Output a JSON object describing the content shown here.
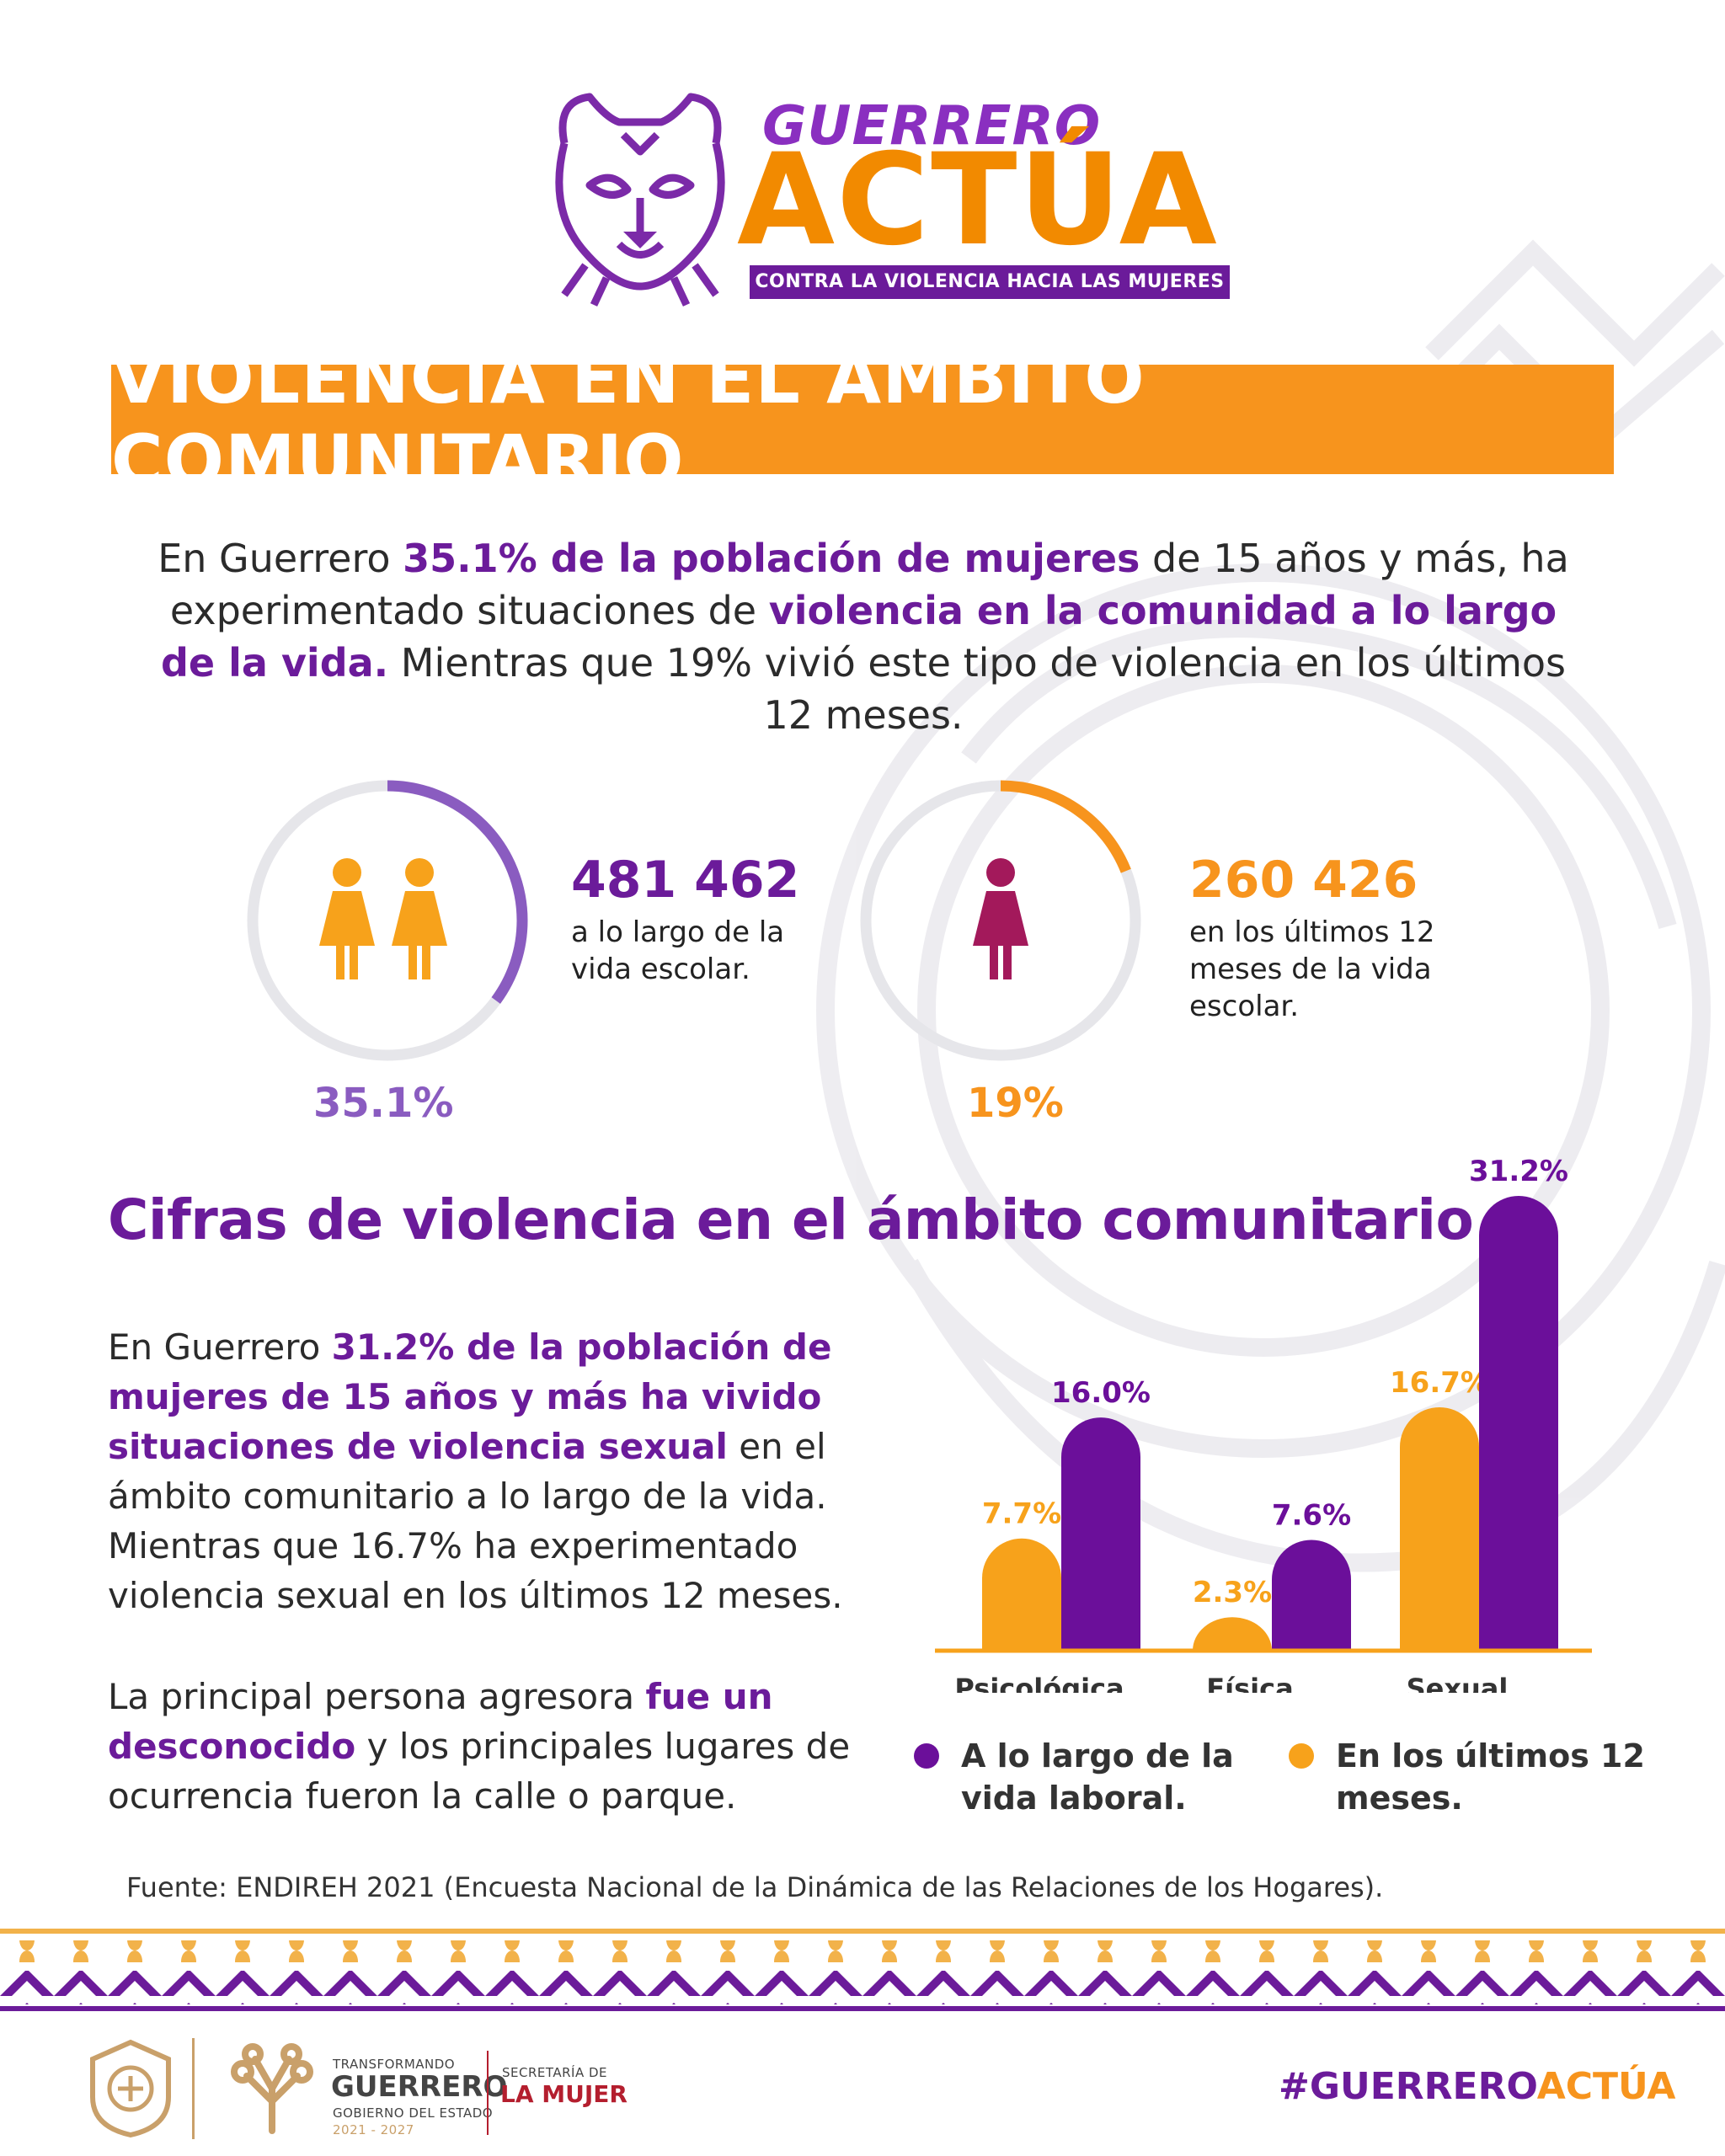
{
  "logo": {
    "line1": "GUERRERO",
    "line2": "ACTÚA",
    "tagline": "CONTRA LA VIOLENCIA HACIA LAS MUJERES",
    "icon": "jaguar-icon"
  },
  "title": "VIOLENCIA EN EL ÁMBITO COMUNITARIO",
  "intro": {
    "t1": "En Guerrero ",
    "h1": "35.1% de la población de mujeres",
    "t2": " de 15 años y más, ha experimentado situaciones de ",
    "h2": "violencia en la comunidad a lo largo de la vida.",
    "t3": " Mientras que 19% vivió este tipo de violencia en los últimos 12 meses."
  },
  "stats": [
    {
      "number": "481 462",
      "desc_line1": "a lo largo de la",
      "desc_line2": "vida escolar.",
      "desc_line3": "",
      "percent_label": "35.1%",
      "percent": 35.1,
      "icon": "two-women-icon",
      "color": "#8a5cc0",
      "icon_color": "#f7a21b"
    },
    {
      "number": "260 426",
      "desc_line1": "en los últimos 12",
      "desc_line2": "meses de la vida",
      "desc_line3": "escolar.",
      "percent_label": "19%",
      "percent": 19,
      "icon": "woman-icon",
      "color": "#f7941d",
      "icon_color": "#a3195b"
    }
  ],
  "section_title": "Cifras de violencia en el ámbito comunitario",
  "para1": {
    "t1": "En Guerrero ",
    "h1": "31.2% de la población de mujeres de 15 años y más ha vivido situaciones de violencia sexual",
    "t2": " en el ámbito comunitario a lo largo de la vida. Mientras que 16.7% ha experimentado violencia sexual en los últimos 12 meses."
  },
  "para2": {
    "t1": "La principal persona agresora ",
    "h1": "fue un desconocido",
    "t2": " y los principales lugares de ocurrencia fueron la calle o parque."
  },
  "chart_data": {
    "type": "bar",
    "categories": [
      "Psicológica",
      "Física",
      "Sexual"
    ],
    "series": [
      {
        "name": "En los últimos 12 meses.",
        "values": [
          7.7,
          2.3,
          16.7
        ],
        "labels": [
          "7.7%",
          "2.3%",
          "16.7%"
        ],
        "color": "#f7a21b"
      },
      {
        "name": "A lo largo de la vida laboral.",
        "values": [
          16.0,
          7.6,
          31.2
        ],
        "labels": [
          "16.0%",
          "7.6%",
          "31.2%"
        ],
        "color": "#6b0f9a"
      }
    ],
    "ylim": [
      0,
      31.2
    ],
    "grid": false,
    "legend_position": "bottom"
  },
  "legend": {
    "purple_line1": "A lo largo de la",
    "purple_line2": "vida laboral.",
    "orange_line1": "En los últimos 12",
    "orange_line2": "meses."
  },
  "source": "Fuente: ENDIREH 2021 (Encuesta Nacional de la Dinámica de las Relaciones de los Hogares).",
  "footer": {
    "transformando": "TRANSFORMANDO",
    "guerrero": "GUERRERO",
    "gobierno": "GOBIERNO DEL ESTADO",
    "period": "2021 - 2027",
    "secretaria": "SECRETARÍA DE",
    "la_mujer": "LA MUJER",
    "hashtag_part1": "#GUERRERO",
    "hashtag_part2": "ACTÚA"
  },
  "colors": {
    "purple": "#6b1b9a",
    "orange": "#f7941d",
    "light_purple": "#8a5cc0"
  }
}
